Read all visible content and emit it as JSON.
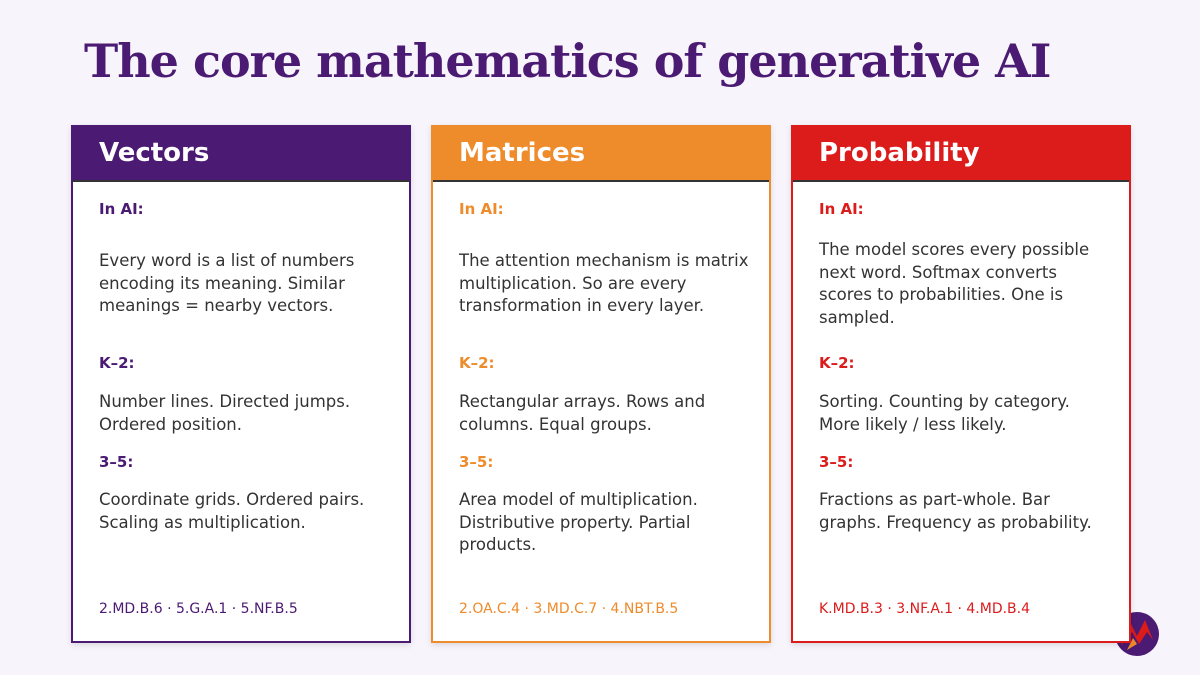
{
  "title": "The core mathematics of generative AI",
  "cards": [
    {
      "heading": "Vectors",
      "color": "#4b1a73",
      "sections": [
        {
          "label": "In AI:",
          "text": "Every word is a list of numbers encoding its meaning. Similar meanings = nearby vectors."
        },
        {
          "label": "K–2:",
          "text": "Number lines. Directed jumps. Ordered position."
        },
        {
          "label": "3–5:",
          "text": "Coordinate grids. Ordered pairs. Scaling as multiplication."
        }
      ],
      "standards": "2.MD.B.6 · 5.G.A.1 · 5.NF.B.5"
    },
    {
      "heading": "Matrices",
      "color": "#ee8b2b",
      "sections": [
        {
          "label": "In AI:",
          "text": "The attention mechanism is matrix multiplication. So are every transformation in every layer."
        },
        {
          "label": "K–2:",
          "text": "Rectangular arrays. Rows and columns. Equal groups."
        },
        {
          "label": "3–5:",
          "text": "Area model of multiplication. Distributive property. Partial products."
        }
      ],
      "standards": "2.OA.C.4 · 3.MD.C.7 · 4.NBT.B.5"
    },
    {
      "heading": "Probability",
      "color": "#dc1b1b",
      "sections": [
        {
          "label": "In AI:",
          "text": "The model scores every possible next word. Softmax converts scores to probabilities. One is sampled."
        },
        {
          "label": "K–2:",
          "text": "Sorting. Counting by category. More likely / less likely."
        },
        {
          "label": "3–5:",
          "text": "Fractions as part-whole. Bar graphs. Frequency as probability."
        }
      ],
      "standards": "K.MD.B.3 · 3.NF.A.1 · 4.MD.B.4"
    }
  ]
}
